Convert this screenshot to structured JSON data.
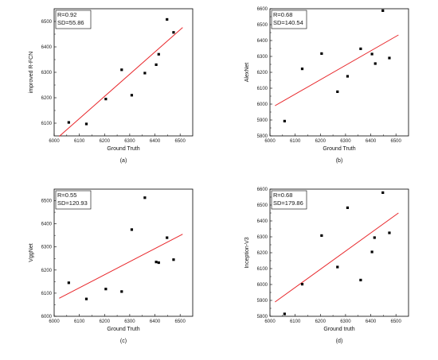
{
  "chart_data": [
    {
      "type": "scatter",
      "panel_label": "(a)",
      "xlabel": "Ground Truth",
      "ylabel": "improved R-FCN",
      "xlim": [
        6000,
        6550
      ],
      "ylim": [
        6050,
        6550
      ],
      "xticks": [
        6000,
        6100,
        6200,
        6300,
        6400,
        6500
      ],
      "yticks": [
        6100,
        6200,
        6300,
        6400,
        6500
      ],
      "stats": [
        "R=0.92",
        "SD=55.86"
      ],
      "points": [
        {
          "x": 6058,
          "y": 6103
        },
        {
          "x": 6128,
          "y": 6097
        },
        {
          "x": 6205,
          "y": 6195
        },
        {
          "x": 6268,
          "y": 6310
        },
        {
          "x": 6308,
          "y": 6210
        },
        {
          "x": 6360,
          "y": 6297
        },
        {
          "x": 6405,
          "y": 6330
        },
        {
          "x": 6415,
          "y": 6371
        },
        {
          "x": 6448,
          "y": 6508
        },
        {
          "x": 6474,
          "y": 6457
        }
      ],
      "fit": {
        "x": [
          6020,
          6510
        ],
        "y": [
          6048,
          6476
        ]
      },
      "marker_color": "#000000",
      "fit_color": "#e8262a"
    },
    {
      "type": "scatter",
      "panel_label": "(b)",
      "xlabel": "Ground Truth",
      "ylabel": "AlexNet",
      "xlim": [
        6000,
        6550
      ],
      "ylim": [
        5800,
        6600
      ],
      "xticks": [
        6000,
        6100,
        6200,
        6300,
        6400,
        6500
      ],
      "yticks": [
        5800,
        5900,
        6000,
        6100,
        6200,
        6300,
        6400,
        6500,
        6600
      ],
      "stats": [
        "R=0.68",
        "SD=140.54"
      ],
      "points": [
        {
          "x": 6058,
          "y": 5893
        },
        {
          "x": 6128,
          "y": 6222
        },
        {
          "x": 6205,
          "y": 6318
        },
        {
          "x": 6268,
          "y": 6078
        },
        {
          "x": 6308,
          "y": 6175
        },
        {
          "x": 6360,
          "y": 6348
        },
        {
          "x": 6405,
          "y": 6315
        },
        {
          "x": 6418,
          "y": 6255
        },
        {
          "x": 6448,
          "y": 6588
        },
        {
          "x": 6474,
          "y": 6290
        }
      ],
      "fit": {
        "x": [
          6020,
          6510
        ],
        "y": [
          5990,
          6435
        ]
      },
      "marker_color": "#000000",
      "fit_color": "#e8262a"
    },
    {
      "type": "scatter",
      "panel_label": "(c)",
      "xlabel": "Ground Truth",
      "ylabel": "VggNet",
      "xlim": [
        6000,
        6550
      ],
      "ylim": [
        6000,
        6550
      ],
      "xticks": [
        6000,
        6100,
        6200,
        6300,
        6400,
        6500
      ],
      "yticks": [
        6000,
        6100,
        6200,
        6300,
        6400,
        6500
      ],
      "stats": [
        "R=0.55",
        "SD=120.93"
      ],
      "points": [
        {
          "x": 6058,
          "y": 6145
        },
        {
          "x": 6128,
          "y": 6075
        },
        {
          "x": 6205,
          "y": 6118
        },
        {
          "x": 6268,
          "y": 6107
        },
        {
          "x": 6308,
          "y": 6375
        },
        {
          "x": 6360,
          "y": 6513
        },
        {
          "x": 6405,
          "y": 6235
        },
        {
          "x": 6415,
          "y": 6232
        },
        {
          "x": 6448,
          "y": 6340
        },
        {
          "x": 6474,
          "y": 6245
        }
      ],
      "fit": {
        "x": [
          6020,
          6510
        ],
        "y": [
          6078,
          6355
        ]
      },
      "marker_color": "#000000",
      "fit_color": "#e8262a"
    },
    {
      "type": "scatter",
      "panel_label": "(d)",
      "xlabel": "Ground truth",
      "ylabel": "Inception-V3",
      "xlim": [
        6000,
        6550
      ],
      "ylim": [
        5800,
        6600
      ],
      "xticks": [
        6000,
        6100,
        6200,
        6300,
        6400,
        6500
      ],
      "yticks": [
        5800,
        5900,
        6000,
        6100,
        6200,
        6300,
        6400,
        6500,
        6600
      ],
      "stats": [
        "R=0.68",
        "SD=179.86"
      ],
      "points": [
        {
          "x": 6058,
          "y": 5815
        },
        {
          "x": 6128,
          "y": 6002
        },
        {
          "x": 6205,
          "y": 6308
        },
        {
          "x": 6268,
          "y": 6110
        },
        {
          "x": 6308,
          "y": 6483
        },
        {
          "x": 6360,
          "y": 6028
        },
        {
          "x": 6405,
          "y": 6205
        },
        {
          "x": 6415,
          "y": 6295
        },
        {
          "x": 6448,
          "y": 6578
        },
        {
          "x": 6474,
          "y": 6325
        }
      ],
      "fit": {
        "x": [
          6020,
          6510
        ],
        "y": [
          5890,
          6450
        ]
      },
      "marker_color": "#000000",
      "fit_color": "#e8262a"
    }
  ]
}
